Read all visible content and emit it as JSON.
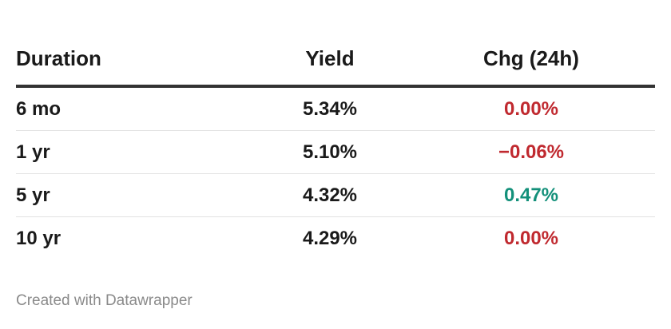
{
  "chart_data": {
    "type": "table",
    "columns": [
      "Duration",
      "Yield",
      "Chg (24h)"
    ],
    "rows": [
      {
        "duration": "6 mo",
        "yield": "5.34%",
        "chg": "0.00%",
        "chg_value": 0.0,
        "chg_color": "#c0292f"
      },
      {
        "duration": "1 yr",
        "yield": "5.10%",
        "chg": "−0.06%",
        "chg_value": -0.06,
        "chg_color": "#c0292f"
      },
      {
        "duration": "5 yr",
        "yield": "4.32%",
        "chg": "0.47%",
        "chg_value": 0.47,
        "chg_color": "#13907a"
      },
      {
        "duration": "10 yr",
        "yield": "4.29%",
        "chg": "0.00%",
        "chg_value": 0.0,
        "chg_color": "#c0292f"
      }
    ]
  },
  "footer": {
    "credit": "Created with Datawrapper"
  },
  "colors": {
    "negative": "#c0292f",
    "positive": "#13907a",
    "header_rule": "#333333"
  }
}
